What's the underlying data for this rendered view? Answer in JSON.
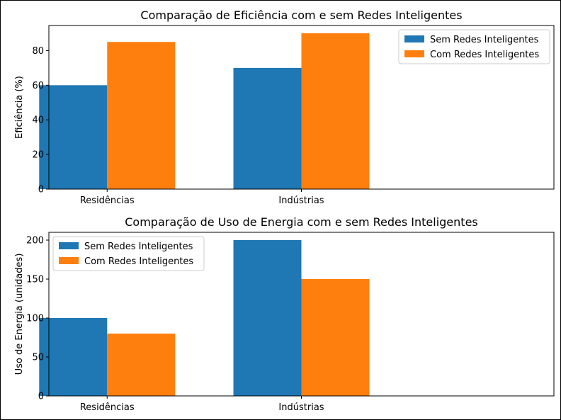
{
  "chart_data": [
    {
      "type": "bar",
      "title": "Comparação de Eficiência com e sem Redes Inteligentes",
      "xlabel": "",
      "ylabel": "Eficiência (%)",
      "categories": [
        "Residências",
        "Indústrias"
      ],
      "series": [
        {
          "name": "Sem Redes Inteligentes",
          "values": [
            60,
            70
          ],
          "color": "#1f77b4"
        },
        {
          "name": "Com Redes Inteligentes",
          "values": [
            85,
            90
          ],
          "color": "#ff7f0e"
        }
      ],
      "ylim": [
        0,
        94.5
      ],
      "yticks": [
        0,
        20,
        40,
        60,
        80
      ],
      "legend": "top-right",
      "grid": false
    },
    {
      "type": "bar",
      "title": "Comparação de Uso de Energia com e sem Redes Inteligentes",
      "xlabel": "",
      "ylabel": "Uso de Energia (unidades)",
      "categories": [
        "Residências",
        "Indústrias"
      ],
      "series": [
        {
          "name": "Sem Redes Inteligentes",
          "values": [
            100,
            200
          ],
          "color": "#1f77b4"
        },
        {
          "name": "Com Redes Inteligentes",
          "values": [
            80,
            150
          ],
          "color": "#ff7f0e"
        }
      ],
      "ylim": [
        0,
        210
      ],
      "yticks": [
        0,
        50,
        100,
        150,
        200
      ],
      "legend": "top-left",
      "grid": false
    }
  ]
}
